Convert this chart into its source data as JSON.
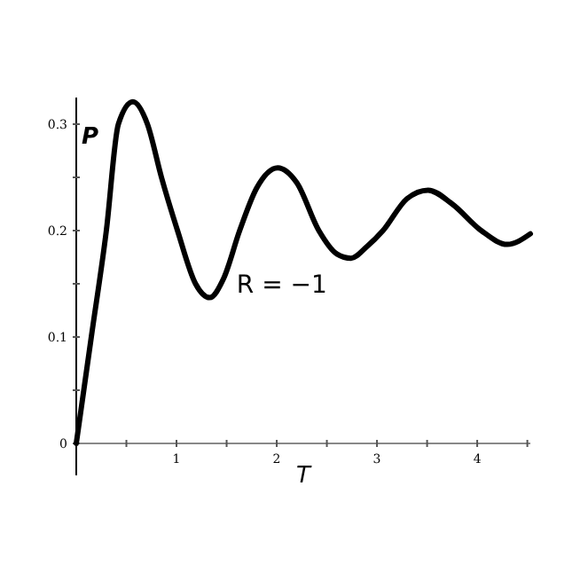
{
  "chart_data": {
    "type": "line",
    "xlabel": "T",
    "ylabel": "P",
    "annotations": [
      "R = −1"
    ],
    "xlim": [
      0,
      4.53
    ],
    "ylim": [
      -0.03,
      0.325
    ],
    "xticks": [
      {
        "value": 0.5,
        "label": null
      },
      1,
      {
        "value": 1.5,
        "label": null
      },
      2,
      {
        "value": 2.5,
        "label": null
      },
      3,
      {
        "value": 3.5,
        "label": null
      },
      4,
      {
        "value": 4.5,
        "label": null
      }
    ],
    "yticks": [
      0,
      {
        "value": 0.05,
        "label": null
      },
      0.1,
      {
        "value": 0.15,
        "label": null
      },
      0.2,
      {
        "value": 0.25,
        "label": null
      },
      0.3
    ],
    "grid": false,
    "marker": "none",
    "line_style": "solid",
    "series": [
      {
        "color": "#000000",
        "x": [
          0,
          0.15,
          0.3,
          0.42,
          0.565,
          0.71,
          0.85,
          1.01,
          1.19,
          1.33,
          1.47,
          1.63,
          1.8,
          2.01,
          2.2,
          2.42,
          2.6,
          2.74,
          2.9,
          3.06,
          3.3,
          3.51,
          3.75,
          4.04,
          4.3,
          4.53
        ],
        "values": [
          0,
          0.1,
          0.2,
          0.3,
          0.321,
          0.3,
          0.25,
          0.2,
          0.15,
          0.137,
          0.155,
          0.2,
          0.24,
          0.259,
          0.245,
          0.2,
          0.178,
          0.174,
          0.185,
          0.2,
          0.23,
          0.238,
          0.225,
          0.2,
          0.187,
          0.197
        ]
      }
    ]
  }
}
